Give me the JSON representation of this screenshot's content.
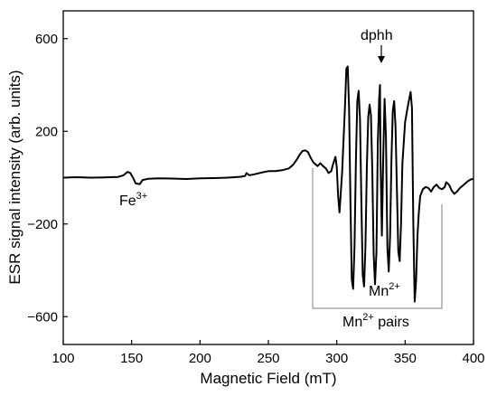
{
  "chart_data": {
    "type": "line",
    "title": "",
    "xlabel": "Magnetic Field (mT)",
    "ylabel": "ESR signal intensity (arb. units)",
    "xlim": [
      100,
      400
    ],
    "ylim": [
      -720,
      720
    ],
    "xticks": [
      100,
      150,
      200,
      250,
      300,
      350,
      400
    ],
    "yticks": [
      -600,
      -200,
      200,
      600
    ],
    "grid": false,
    "legend": "none",
    "line_color": "#000000",
    "series": [
      {
        "points": [
          [
            100,
            0
          ],
          [
            110,
            2
          ],
          [
            120,
            0
          ],
          [
            130,
            1
          ],
          [
            140,
            3
          ],
          [
            144,
            10
          ],
          [
            147,
            25
          ],
          [
            149,
            20
          ],
          [
            151,
            0
          ],
          [
            153,
            -25
          ],
          [
            156,
            -28
          ],
          [
            158,
            -10
          ],
          [
            162,
            -5
          ],
          [
            170,
            -3
          ],
          [
            180,
            -4
          ],
          [
            190,
            -6
          ],
          [
            200,
            -3
          ],
          [
            210,
            -2
          ],
          [
            220,
            0
          ],
          [
            230,
            4
          ],
          [
            233,
            8
          ],
          [
            234,
            20
          ],
          [
            236,
            10
          ],
          [
            240,
            15
          ],
          [
            245,
            22
          ],
          [
            250,
            28
          ],
          [
            255,
            28
          ],
          [
            260,
            32
          ],
          [
            265,
            40
          ],
          [
            268,
            55
          ],
          [
            271,
            80
          ],
          [
            273,
            100
          ],
          [
            275,
            115
          ],
          [
            277,
            118
          ],
          [
            279,
            110
          ],
          [
            281,
            85
          ],
          [
            283,
            65
          ],
          [
            285,
            55
          ],
          [
            286,
            50
          ],
          [
            288,
            62
          ],
          [
            290,
            50
          ],
          [
            292,
            40
          ],
          [
            294,
            20
          ],
          [
            296,
            28
          ],
          [
            297,
            52
          ],
          [
            299,
            90
          ],
          [
            300,
            45
          ],
          [
            301,
            -80
          ],
          [
            302,
            -150
          ],
          [
            304,
            30
          ],
          [
            306,
            300
          ],
          [
            307,
            470
          ],
          [
            308,
            480
          ],
          [
            309,
            300
          ],
          [
            310,
            -100
          ],
          [
            311,
            -440
          ],
          [
            312,
            -480
          ],
          [
            313,
            -300
          ],
          [
            314,
            80
          ],
          [
            315,
            330
          ],
          [
            316,
            375
          ],
          [
            317,
            250
          ],
          [
            318,
            -100
          ],
          [
            319,
            -420
          ],
          [
            320,
            -470
          ],
          [
            321,
            -300
          ],
          [
            322,
            50
          ],
          [
            323,
            260
          ],
          [
            324,
            315
          ],
          [
            325,
            270
          ],
          [
            326,
            30
          ],
          [
            327,
            -330
          ],
          [
            328,
            -460
          ],
          [
            329,
            -320
          ],
          [
            330,
            150
          ],
          [
            331,
            340
          ],
          [
            331.6,
            400
          ],
          [
            332,
            80
          ],
          [
            333,
            -250
          ],
          [
            334,
            90
          ],
          [
            335,
            340
          ],
          [
            336,
            180
          ],
          [
            337,
            -300
          ],
          [
            338,
            -405
          ],
          [
            339,
            -250
          ],
          [
            340,
            80
          ],
          [
            341,
            290
          ],
          [
            342,
            330
          ],
          [
            343,
            220
          ],
          [
            344,
            -60
          ],
          [
            345,
            -320
          ],
          [
            346,
            -360
          ],
          [
            347,
            -200
          ],
          [
            348,
            60
          ],
          [
            350,
            240
          ],
          [
            352,
            310
          ],
          [
            354,
            370
          ],
          [
            355,
            300
          ],
          [
            356,
            -200
          ],
          [
            357,
            -535
          ],
          [
            358,
            -450
          ],
          [
            359,
            -250
          ],
          [
            360,
            -150
          ],
          [
            361,
            -80
          ],
          [
            363,
            -50
          ],
          [
            365,
            -40
          ],
          [
            367,
            -45
          ],
          [
            369,
            -60
          ],
          [
            371,
            -40
          ],
          [
            373,
            -30
          ],
          [
            375,
            -45
          ],
          [
            377,
            -50
          ],
          [
            379,
            -40
          ],
          [
            380,
            -20
          ],
          [
            382,
            -30
          ],
          [
            384,
            -55
          ],
          [
            386,
            -70
          ],
          [
            388,
            -60
          ],
          [
            390,
            -45
          ],
          [
            392,
            -35
          ],
          [
            394,
            -25
          ],
          [
            396,
            -15
          ],
          [
            398,
            -8
          ],
          [
            400,
            -5
          ]
        ]
      }
    ],
    "annotations": {
      "fe": {
        "base": "Fe",
        "sup": "3+"
      },
      "dphh": {
        "text": "dphh"
      },
      "mn": {
        "base": "Mn",
        "sup": "2+"
      },
      "mn_pairs": {
        "base": "Mn",
        "sup": "2+",
        "rest": " pairs"
      }
    }
  }
}
